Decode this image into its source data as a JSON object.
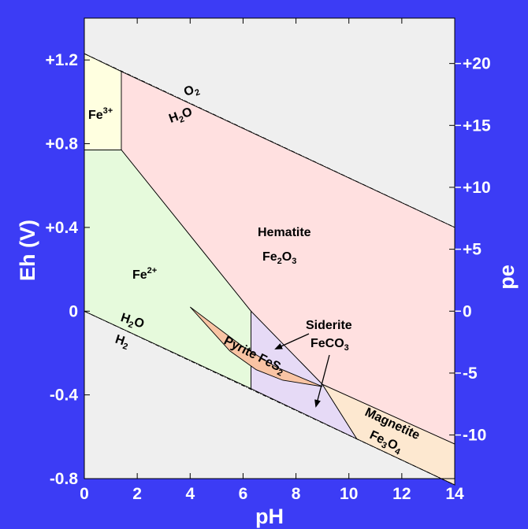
{
  "chart_data": {
    "type": "area",
    "xlabel": "pH",
    "ylabel": "Eh (V)",
    "y2label": "pe",
    "xlim": [
      0,
      14
    ],
    "ylim": [
      -0.8,
      1.4
    ],
    "x_ticks": [
      "0",
      "2",
      "4",
      "6",
      "8",
      "10",
      "12",
      "14"
    ],
    "y_ticks": [
      {
        "v": 1.2,
        "label": "+1.2"
      },
      {
        "v": 0.8,
        "label": "+0.8"
      },
      {
        "v": 0.4,
        "label": "+0.4"
      },
      {
        "v": 0.0,
        "label": "0"
      },
      {
        "v": -0.4,
        "label": "-0.4"
      },
      {
        "v": -0.8,
        "label": "-0.8"
      }
    ],
    "pe_ticks": [
      {
        "v": 20,
        "label": "+20"
      },
      {
        "v": 15,
        "label": "+15"
      },
      {
        "v": 10,
        "label": "+10"
      },
      {
        "v": 5,
        "label": "+5"
      },
      {
        "v": 0,
        "label": "0"
      },
      {
        "v": -5,
        "label": "-5"
      },
      {
        "v": -10,
        "label": "-10"
      }
    ],
    "water_lines": {
      "o2_h2o": [
        [
          0,
          1.23
        ],
        [
          14,
          0.4
        ]
      ],
      "h2o_h2": [
        [
          0,
          0.0
        ],
        [
          14,
          -0.83
        ]
      ]
    },
    "regions": [
      {
        "name": "Fe3+",
        "color": "#ffffe0",
        "polygon": [
          [
            0,
            1.23
          ],
          [
            1.4,
            1.145
          ],
          [
            1.4,
            0.77
          ],
          [
            0,
            0.77
          ]
        ]
      },
      {
        "name": "Hematite Fe2O3",
        "color": "#ffe0e0",
        "polygon": [
          [
            1.4,
            1.145
          ],
          [
            14,
            0.4
          ],
          [
            14,
            -0.635
          ],
          [
            9.0,
            -0.35
          ],
          [
            6.3,
            0.0
          ],
          [
            1.4,
            0.77
          ]
        ]
      },
      {
        "name": "Fe2+",
        "color": "#e6fadc",
        "polygon": [
          [
            0,
            0.77
          ],
          [
            1.4,
            0.77
          ],
          [
            6.3,
            0.0
          ],
          [
            6.3,
            -0.37
          ],
          [
            0,
            0.0
          ]
        ]
      },
      {
        "name": "Siderite FeCO3",
        "color": "#e6daf6",
        "polygon": [
          [
            6.3,
            0.0
          ],
          [
            9.0,
            -0.35
          ],
          [
            10.3,
            -0.61
          ],
          [
            6.3,
            -0.37
          ]
        ]
      },
      {
        "name": "Pyrite FeS2",
        "color": "#f9c4a4",
        "polygon": [
          [
            4.0,
            0.02
          ],
          [
            6.0,
            -0.17
          ],
          [
            7.3,
            -0.27
          ],
          [
            9.0,
            -0.36
          ],
          [
            7.5,
            -0.33
          ],
          [
            6.5,
            -0.28
          ],
          [
            5.5,
            -0.19
          ]
        ]
      },
      {
        "name": "Magnetite Fe3O4",
        "color": "#fde8d0",
        "polygon": [
          [
            9.0,
            -0.35
          ],
          [
            14,
            -0.635
          ],
          [
            14,
            -0.83
          ],
          [
            10.3,
            -0.61
          ]
        ]
      }
    ],
    "labels": {
      "o2": "O",
      "o2_sub": "2",
      "h2o_top": "H",
      "h2o_top_sub": "2",
      "h2o_top_tail": "O",
      "h2o_bottom": "H",
      "h2o_bottom_sub": "2",
      "h2o_bottom_tail": "O",
      "h2": "H",
      "h2_sub": "2",
      "fe3": "Fe",
      "fe3_sup": "3+",
      "fe2": "Fe",
      "fe2_sup": "2+",
      "hematite": "Hematite",
      "hematite_formula": "Fe",
      "hematite_sub1": "2",
      "hematite_mid": "O",
      "hematite_sub2": "3",
      "siderite": "Siderite",
      "siderite_formula": "FeCO",
      "siderite_sub": "3",
      "pyrite": "Pyrite FeS",
      "pyrite_sub": "2",
      "magnetite": "Magnetite",
      "magnetite_formula": "Fe",
      "magnetite_sub1": "3",
      "magnetite_mid": "O",
      "magnetite_sub2": "4"
    }
  }
}
